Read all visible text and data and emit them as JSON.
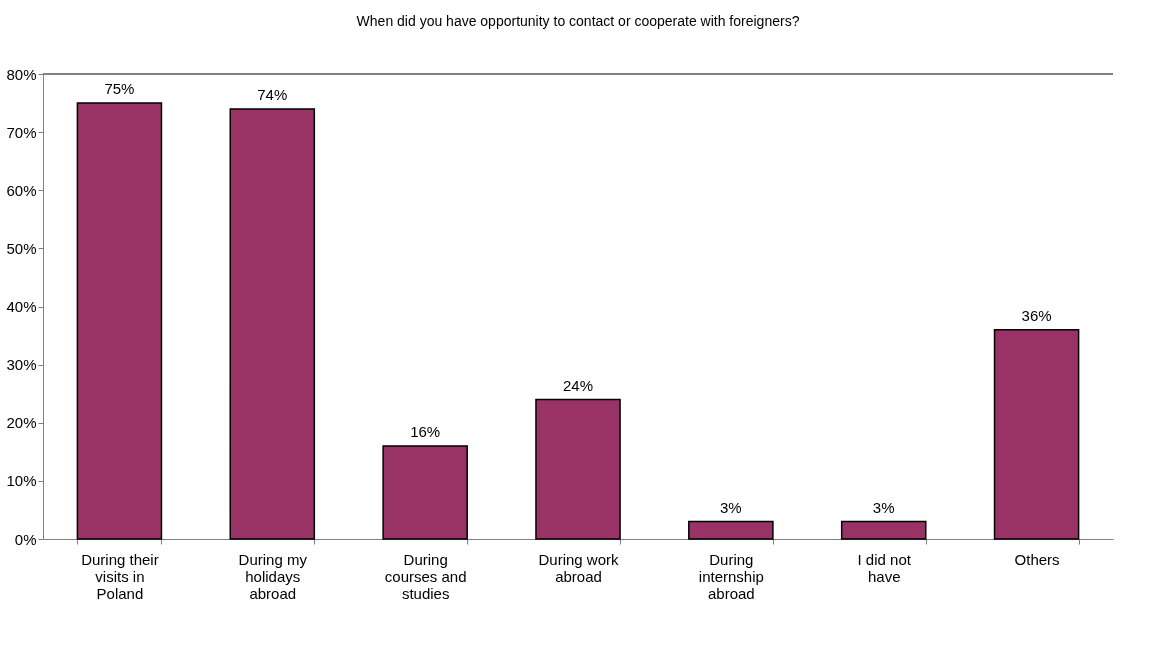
{
  "chart_data": {
    "type": "bar",
    "title": "When did you have opportunity to contact or cooperate with foreigners?",
    "categories": [
      "During their visits in Poland",
      "During my holidays abroad",
      "During courses and studies",
      "During work abroad",
      "During internship abroad",
      "I did not have",
      "Others"
    ],
    "values": [
      75,
      74,
      16,
      24,
      3,
      3,
      36
    ],
    "value_labels": [
      "75%",
      "74%",
      "16%",
      "24%",
      "3%",
      "3%",
      "36%"
    ],
    "color": "#993366",
    "ylim": [
      0,
      80
    ],
    "yticks": [
      {
        "value": 0,
        "label": "0%"
      },
      {
        "value": 10,
        "label": "10%"
      },
      {
        "value": 20,
        "label": "20%"
      },
      {
        "value": 30,
        "label": "30%"
      },
      {
        "value": 40,
        "label": "40%"
      },
      {
        "value": 50,
        "label": "50%"
      },
      {
        "value": 60,
        "label": "60%"
      },
      {
        "value": 70,
        "label": "70%"
      },
      {
        "value": 80,
        "label": "80%"
      }
    ],
    "grid": false
  }
}
